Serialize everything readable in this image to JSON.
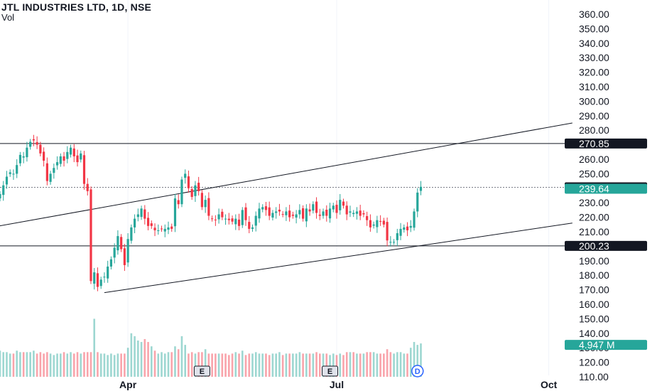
{
  "header": {
    "title": "JTL INDUSTRIES LTD, 1D, NSE",
    "indicator": "Vol"
  },
  "colors": {
    "up": "#26a69a",
    "down": "#f23645",
    "line": "#131722",
    "grid": "#f0f3fa",
    "label_dark": "#131722",
    "label_green": "#26a69a",
    "earnings": "#131722",
    "dividend": "#2962ff"
  },
  "chart_data": {
    "type": "candlestick",
    "ylim": [
      110,
      360
    ],
    "y_ticks": [
      "360.00",
      "350.00",
      "340.00",
      "330.00",
      "320.00",
      "310.00",
      "300.00",
      "290.00",
      "280.00",
      "270.00",
      "260.00",
      "250.00",
      "240.00",
      "230.00",
      "220.00",
      "210.00",
      "200.00",
      "190.00",
      "180.00",
      "170.00",
      "160.00",
      "150.00",
      "140.00",
      "130.00",
      "120.00",
      "110.00"
    ],
    "x_ticks": [
      {
        "label": "Apr",
        "index": 38
      },
      {
        "label": "Jul",
        "index": 100
      },
      {
        "label": "Oct",
        "index": 163
      }
    ],
    "price_levels": [
      {
        "value": 270.85,
        "label": "270.85",
        "style": "solid",
        "label_color": "#131722"
      },
      {
        "value": 240.63,
        "label": "240.63",
        "style": "dotted",
        "label_color": "#131722"
      },
      {
        "value": 239.64,
        "label": "239.64",
        "style": "none",
        "label_color": "#26a69a"
      },
      {
        "value": 200.23,
        "label": "200.23",
        "style": "solid",
        "label_color": "#131722"
      }
    ],
    "volume_label": {
      "label": "4.947 M",
      "value": 132
    },
    "trendlines": [
      {
        "start": {
          "i": -5,
          "v": 212
        },
        "end": {
          "i": 170,
          "v": 285
        }
      },
      {
        "start": {
          "i": 31,
          "v": 168
        },
        "end": {
          "i": 170,
          "v": 216
        }
      }
    ],
    "events": [
      {
        "type": "earnings",
        "label": "E",
        "index": 60
      },
      {
        "type": "earnings",
        "label": "E",
        "index": 98
      },
      {
        "type": "dividend",
        "label": "D",
        "index": 124
      }
    ],
    "closes": [
      236,
      242,
      248,
      251,
      250,
      256,
      263,
      262,
      268,
      272,
      273,
      270,
      264,
      259,
      245,
      250,
      254,
      258,
      262,
      259,
      265,
      268,
      262,
      258,
      264,
      243,
      238,
      176,
      182,
      172,
      177,
      179,
      186,
      191,
      199,
      207,
      198,
      187,
      205,
      213,
      219,
      222,
      226,
      219,
      214,
      214,
      211,
      211,
      212,
      212,
      213,
      212,
      233,
      229,
      246,
      250,
      240,
      234,
      242,
      238,
      227,
      232,
      221,
      219,
      218,
      222,
      220,
      219,
      218,
      217,
      219,
      214,
      225,
      218,
      212,
      213,
      221,
      226,
      227,
      225,
      221,
      223,
      224,
      224,
      222,
      224,
      220,
      221,
      222,
      225,
      219,
      226,
      224,
      229,
      223,
      221,
      224,
      221,
      226,
      228,
      223,
      232,
      228,
      222,
      224,
      223,
      224,
      221,
      222,
      218,
      213,
      215,
      218,
      217,
      215,
      204,
      203,
      203,
      209,
      212,
      213,
      211,
      214,
      224,
      237,
      241
    ],
    "volumes": [
      128,
      127,
      127,
      126,
      126,
      128,
      127,
      127,
      127,
      127,
      128,
      126,
      127,
      126,
      127,
      126,
      125,
      126,
      126,
      127,
      126,
      127,
      126,
      127,
      126,
      127,
      127,
      127,
      150,
      127,
      126,
      126,
      125,
      126,
      125,
      126,
      126,
      126,
      130,
      140,
      138,
      135,
      134,
      136,
      134,
      131,
      128,
      126,
      127,
      126,
      127,
      127,
      131,
      129,
      138,
      132,
      126,
      127,
      126,
      127,
      127,
      129,
      126,
      126,
      126,
      126,
      126,
      126,
      125,
      126,
      127,
      126,
      128,
      125,
      126,
      126,
      127,
      126,
      126,
      126,
      125,
      126,
      126,
      127,
      125,
      126,
      126,
      126,
      126,
      127,
      126,
      126,
      126,
      126,
      127,
      126,
      126,
      126,
      125,
      126,
      125,
      126,
      125,
      127,
      127,
      127,
      126,
      126,
      126,
      127,
      127,
      127,
      126,
      126,
      126,
      129,
      127,
      126,
      127,
      127,
      126,
      126,
      130,
      134,
      132,
      133
    ]
  }
}
